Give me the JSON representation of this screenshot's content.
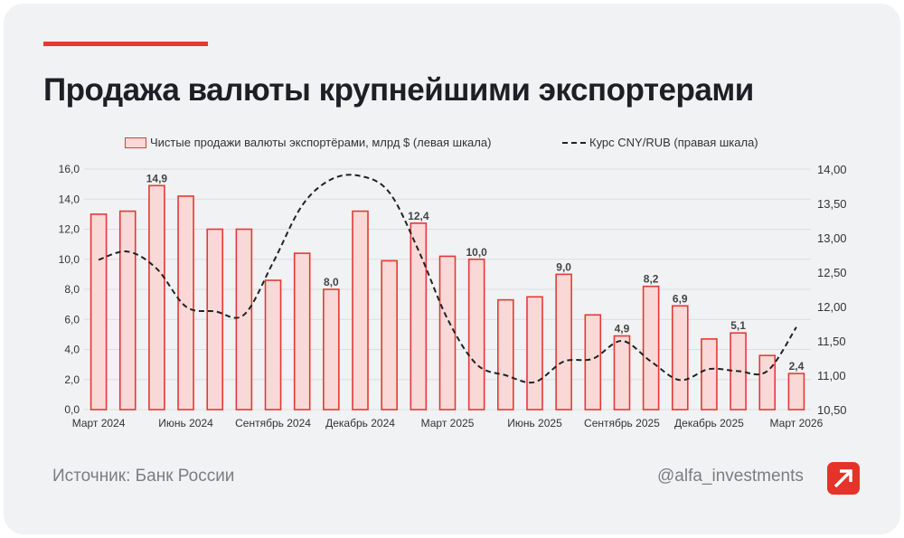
{
  "header": {
    "title": "Продажа валюты крупнейшими экспортерами"
  },
  "legend": {
    "bars": "Чистые продажи валюты экспортёрами, млрд $ (левая шкала)",
    "line": "Курс CNY/RUB (правая шкала)"
  },
  "footer": {
    "source": "Источник: Банк России",
    "handle": "@alfa_investments"
  },
  "colors": {
    "bar_stroke": "#e53935",
    "bar_fill": "#f9d9d8",
    "line": "#222222"
  },
  "chart_data": {
    "type": "bar+line",
    "months": [
      "Мар 2024",
      "Апр 2024",
      "Май 2024",
      "Июн 2024",
      "Июл 2024",
      "Авг 2024",
      "Сен 2024",
      "Окт 2024",
      "Ноя 2024",
      "Дек 2024",
      "Янв 2025",
      "Фев 2025",
      "Мар 2025",
      "Апр 2025",
      "Май 2025",
      "Июн 2025",
      "Июл 2025",
      "Авг 2025",
      "Сен 2025",
      "Окт 2025",
      "Ноя 2025",
      "Дек 2025",
      "Янв 2026",
      "Фев 2026",
      "Мар 2026"
    ],
    "x_tick_labels": [
      {
        "index": 0,
        "label": "Март 2024"
      },
      {
        "index": 3,
        "label": "Июнь 2024"
      },
      {
        "index": 6,
        "label": "Сентябрь 2024"
      },
      {
        "index": 9,
        "label": "Декабрь 2024"
      },
      {
        "index": 12,
        "label": "Март 2025"
      },
      {
        "index": 15,
        "label": "Июнь 2025"
      },
      {
        "index": 18,
        "label": "Сентябрь 2025"
      },
      {
        "index": 21,
        "label": "Декабрь 2025"
      },
      {
        "index": 24,
        "label": "Март 2026"
      }
    ],
    "series": [
      {
        "name": "Чистые продажи валюты экспортёрами, млрд $ (левая шкала)",
        "type": "bar",
        "axis": "left",
        "values": [
          13.0,
          13.2,
          14.9,
          14.2,
          12.0,
          12.0,
          8.6,
          10.4,
          8.0,
          13.2,
          9.9,
          12.4,
          10.2,
          10.0,
          7.3,
          7.5,
          9.0,
          6.3,
          4.9,
          8.2,
          6.9,
          4.7,
          5.1,
          3.6,
          2.4
        ]
      },
      {
        "name": "Курс CNY/RUB (правая шкала)",
        "type": "line",
        "style": "dashed",
        "axis": "right",
        "values": [
          12.68,
          12.8,
          12.55,
          12.0,
          11.93,
          11.88,
          12.64,
          13.47,
          13.85,
          13.9,
          13.66,
          12.82,
          11.82,
          11.16,
          11.0,
          10.9,
          11.2,
          11.24,
          11.5,
          11.2,
          10.93,
          11.09,
          11.06,
          11.06,
          11.7
        ]
      }
    ],
    "data_labels": [
      {
        "index": 2,
        "label": "14,9"
      },
      {
        "index": 8,
        "label": "8,0"
      },
      {
        "index": 11,
        "label": "12,4"
      },
      {
        "index": 13,
        "label": "10,0"
      },
      {
        "index": 16,
        "label": "9,0"
      },
      {
        "index": 18,
        "label": "4,9"
      },
      {
        "index": 19,
        "label": "8,2"
      },
      {
        "index": 20,
        "label": "6,9"
      },
      {
        "index": 22,
        "label": "5,1"
      },
      {
        "index": 24,
        "label": "2,4"
      }
    ],
    "y_left": {
      "ylim": [
        0,
        16
      ],
      "ticks": [
        "0,0",
        "2,0",
        "4,0",
        "6,0",
        "8,0",
        "10,0",
        "12,0",
        "14,0",
        "16,0"
      ]
    },
    "y_right": {
      "ylim": [
        10.5,
        14.0
      ],
      "ticks": [
        "10,50",
        "11,00",
        "11,50",
        "12,00",
        "12,50",
        "13,00",
        "13,50",
        "14,00"
      ]
    },
    "grid": true,
    "legend_position": "top"
  }
}
